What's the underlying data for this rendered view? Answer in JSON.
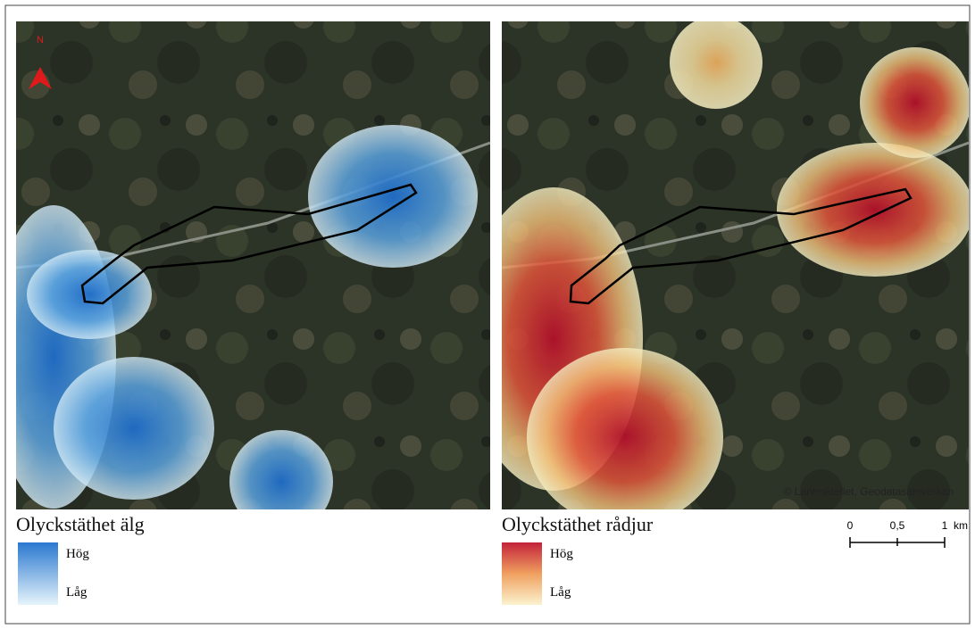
{
  "north_arrow": "N",
  "maps": [
    {
      "title": "Olyckstäthet älg",
      "legend": {
        "high": "Hög",
        "low": "Låg"
      }
    },
    {
      "title": "Olyckstäthet rådjur",
      "legend": {
        "high": "Hög",
        "low": "Låg"
      },
      "attribution": "© Lantmäteriet, Geodatasamverkan"
    }
  ],
  "scale_bar": {
    "labels": [
      "0",
      "0,5",
      "1"
    ],
    "unit": "km"
  }
}
